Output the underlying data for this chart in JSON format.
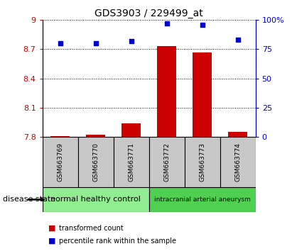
{
  "title": "GDS3903 / 229499_at",
  "samples": [
    "GSM663769",
    "GSM663770",
    "GSM663771",
    "GSM663772",
    "GSM663773",
    "GSM663774"
  ],
  "bar_values": [
    7.81,
    7.82,
    7.94,
    8.73,
    8.67,
    7.85
  ],
  "scatter_values": [
    80,
    80,
    82,
    97,
    96,
    83
  ],
  "ylim_left": [
    7.8,
    9.0
  ],
  "ylim_right": [
    0,
    100
  ],
  "yticks_left": [
    7.8,
    8.1,
    8.4,
    8.7,
    9.0
  ],
  "yticks_right": [
    0,
    25,
    50,
    75,
    100
  ],
  "ytick_labels_left": [
    "7.8",
    "8.1",
    "8.4",
    "8.7",
    "9"
  ],
  "ytick_labels_right": [
    "0",
    "25",
    "50",
    "75",
    "100%"
  ],
  "bar_color": "#cc0000",
  "scatter_color": "#0000cc",
  "group1_label": "normal healthy control",
  "group2_label": "intracranial arterial aneurysm",
  "group1_color": "#90ee90",
  "group2_color": "#50d050",
  "group1_samples": [
    0,
    1,
    2
  ],
  "group2_samples": [
    3,
    4,
    5
  ],
  "legend_bar_label": "transformed count",
  "legend_scatter_label": "percentile rank within the sample",
  "disease_state_label": "disease state"
}
